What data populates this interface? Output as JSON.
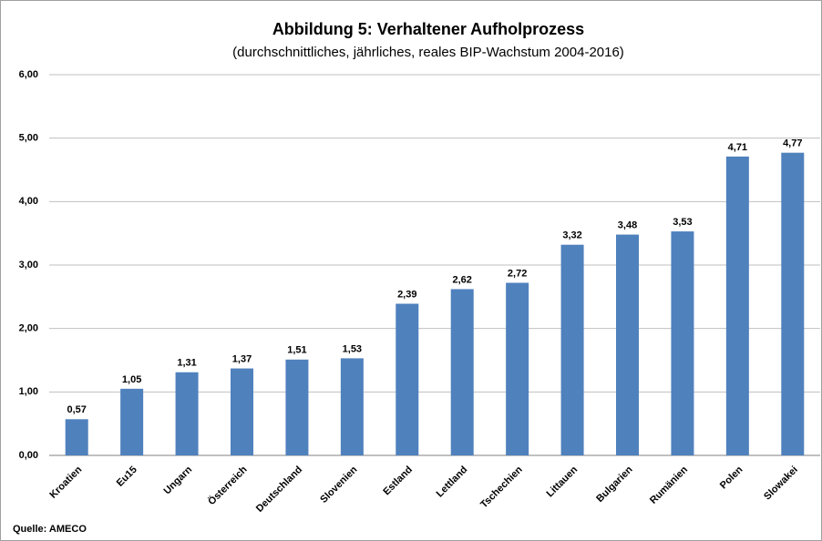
{
  "chart_data": {
    "type": "bar",
    "title": "Abbildung 5: Verhaltener Aufholprozess",
    "subtitle": "(durchschnittliches, jährliches, reales BIP-Wachstum 2004-2016)",
    "source": "Quelle: AMECO",
    "categories": [
      "Kroatien",
      "Eu15",
      "Ungarn",
      "Österreich",
      "Deutschland",
      "Slovenien",
      "Estland",
      "Lettland",
      "Tschechien",
      "Littauen",
      "Bulgarien",
      "Rumänien",
      "Polen",
      "Slowakei"
    ],
    "values": [
      0.57,
      1.05,
      1.31,
      1.37,
      1.51,
      1.53,
      2.39,
      2.62,
      2.72,
      3.32,
      3.48,
      3.53,
      4.71,
      4.77
    ],
    "value_labels": [
      "0,57",
      "1,05",
      "1,31",
      "1,37",
      "1,51",
      "1,53",
      "2,39",
      "2,62",
      "2,72",
      "3,32",
      "3,48",
      "3,53",
      "4,71",
      "4,77"
    ],
    "color": "#4f81bd",
    "ylim": [
      0,
      6
    ],
    "yticks": [
      {
        "value": 0,
        "label": "0,00"
      },
      {
        "value": 1,
        "label": "1,00"
      },
      {
        "value": 2,
        "label": "2,00"
      },
      {
        "value": 3,
        "label": "3,00"
      },
      {
        "value": 4,
        "label": "4,00"
      },
      {
        "value": 5,
        "label": "5,00"
      },
      {
        "value": 6,
        "label": "6,00"
      }
    ],
    "grid": true
  }
}
